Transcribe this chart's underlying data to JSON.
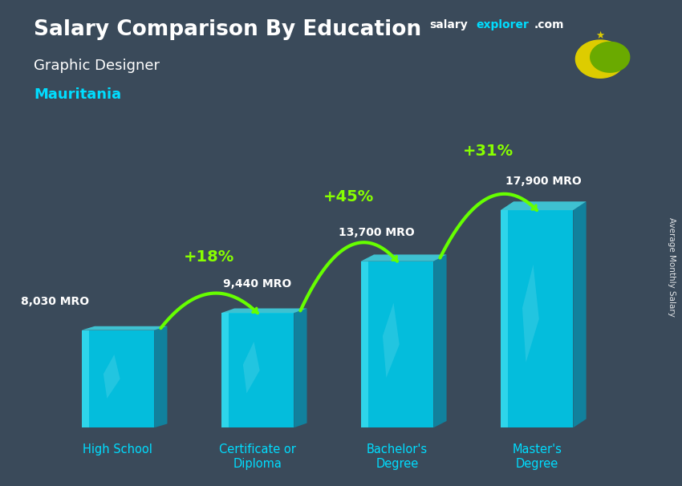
{
  "title_line1": "Salary Comparison By Education",
  "subtitle1": "Graphic Designer",
  "subtitle2": "Mauritania",
  "ylabel": "Average Monthly Salary",
  "categories": [
    "High School",
    "Certificate or\nDiploma",
    "Bachelor's\nDegree",
    "Master's\nDegree"
  ],
  "values": [
    8030,
    9440,
    13700,
    17900
  ],
  "value_labels": [
    "8,030 MRO",
    "9,440 MRO",
    "13,700 MRO",
    "17,900 MRO"
  ],
  "pct_labels": [
    "+18%",
    "+45%",
    "+31%"
  ],
  "bar_color_main": "#00c8e8",
  "bar_color_light": "#40e0f0",
  "bar_color_dark": "#0099bb",
  "arrow_color": "#66ff00",
  "bg_color": "#3a4a5a",
  "title_color": "#ffffff",
  "subtitle1_color": "#ffffff",
  "subtitle2_color": "#00ddff",
  "value_label_color": "#ffffff",
  "pct_label_color": "#88ff00",
  "xtick_color": "#00ddff",
  "flag_bg": "#6aaa00",
  "flag_symbol_color": "#ddcc00",
  "ylim": [
    0,
    24000
  ],
  "bar_bottom": 0,
  "website_text_white": "salary",
  "website_text_cyan": "explorer",
  "website_text_white2": ".com",
  "right_label": "Average Monthly Salary"
}
